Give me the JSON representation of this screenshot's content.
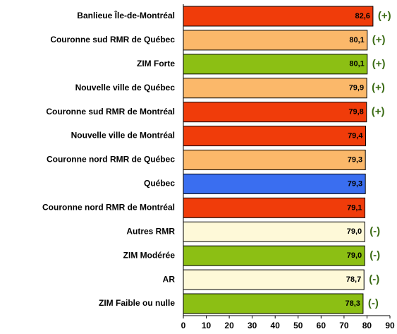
{
  "chart_data": {
    "type": "barh",
    "categories": [
      "Banlieue Île-de-Montréal",
      "Couronne sud RMR de Québec",
      "ZIM Forte",
      "Nouvelle ville de Québec",
      "Couronne sud  RMR de Montréal",
      "Nouvelle ville de Montréal",
      "Couronne nord RMR de Québec",
      "Québec",
      "Couronne nord RMR de Montréal",
      "Autres RMR",
      "ZIM Modérée",
      "AR",
      "ZIM Faible ou nulle"
    ],
    "values": [
      82.6,
      80.1,
      80.1,
      79.9,
      79.8,
      79.4,
      79.3,
      79.3,
      79.1,
      79.0,
      79.0,
      78.7,
      78.3
    ],
    "value_labels": [
      "82,6",
      "80,1",
      "80,1",
      "79,9",
      "79,8",
      "79,4",
      "79,3",
      "79,3",
      "79,1",
      "79,0",
      "79,0",
      "78,7",
      "78,3"
    ],
    "colors": [
      "#f03c0a",
      "#fbb86a",
      "#8cbf14",
      "#fbb86a",
      "#f03c0a",
      "#f03c0a",
      "#fbb86a",
      "#3a6ef0",
      "#f03c0a",
      "#fef9d8",
      "#8cbf14",
      "#fef9d8",
      "#8cbf14"
    ],
    "annotations": [
      "(+)",
      "(+)",
      "(+)",
      "(+)",
      "(+)",
      null,
      null,
      null,
      null,
      "(-)",
      "(-)",
      "(-)",
      "(-)"
    ],
    "xlim": [
      0,
      90
    ],
    "xticks": [
      0,
      10,
      20,
      30,
      40,
      50,
      60,
      70,
      80,
      90
    ]
  }
}
